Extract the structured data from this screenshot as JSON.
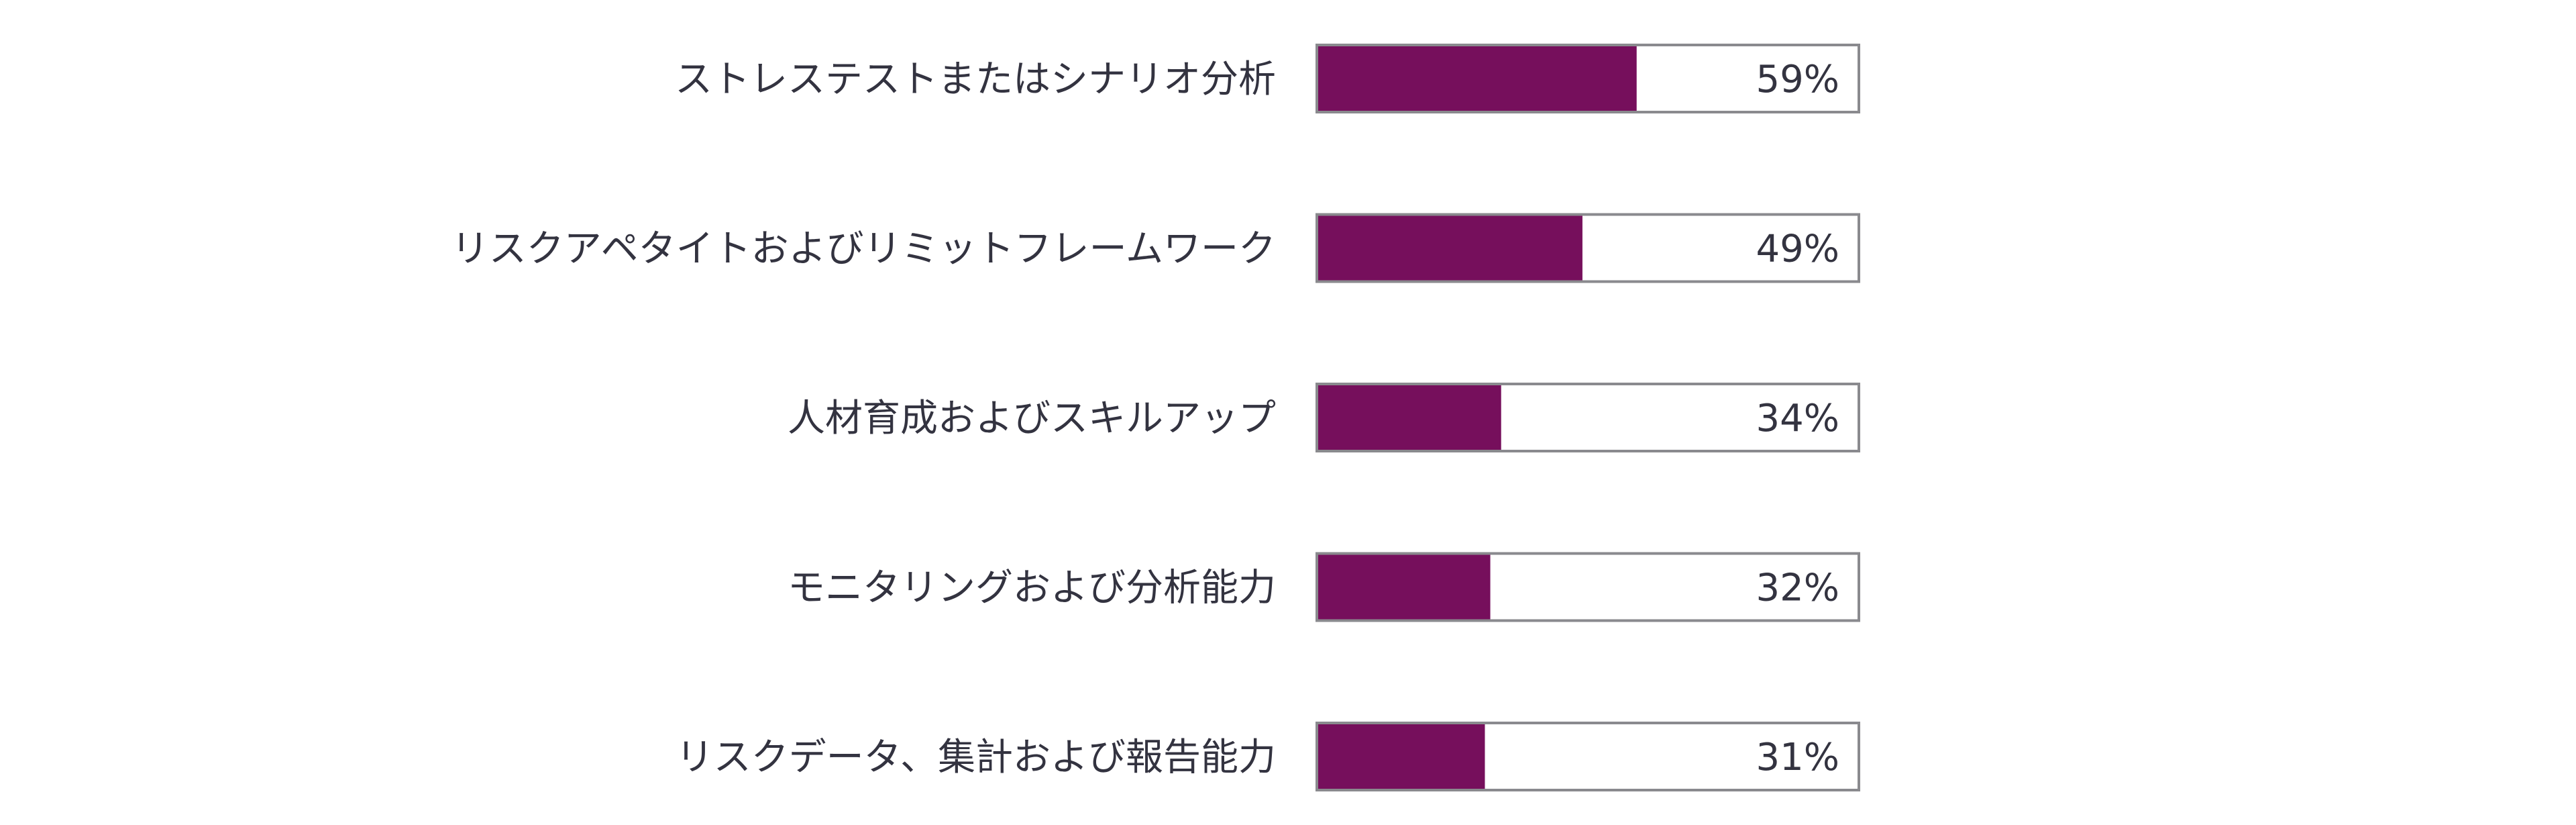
{
  "chart_data": {
    "type": "bar",
    "orientation": "horizontal",
    "categories": [
      "ストレステストまたはシナリオ分析",
      "リスクアペタイトおよびリミットフレームワーク",
      "人材育成およびスキルアップ",
      "モニタリングおよび分析能力",
      "リスクデータ、集計および報告能力"
    ],
    "values": [
      59,
      49,
      34,
      32,
      31
    ],
    "value_labels": [
      "59%",
      "49%",
      "34%",
      "32%",
      "31%"
    ],
    "xlim": [
      0,
      100
    ],
    "unit": "%",
    "bar_color": "#760f5c",
    "track_border_color": "#8a8a8e",
    "grid": false,
    "legend": "none"
  }
}
